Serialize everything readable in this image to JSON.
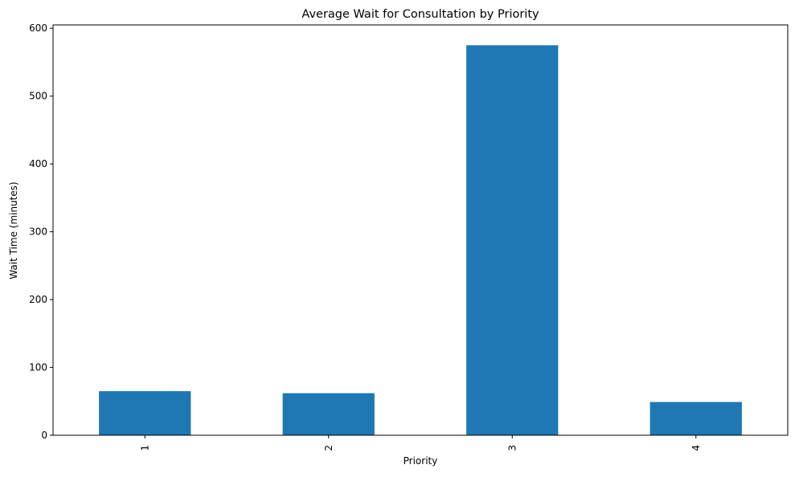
{
  "chart_data": {
    "type": "bar",
    "title": "Average Wait for Consultation by Priority",
    "xlabel": "Priority",
    "ylabel": "Wait Time (minutes)",
    "categories": [
      "1",
      "2",
      "3",
      "4"
    ],
    "values": [
      65,
      62,
      575,
      49
    ],
    "ylim": [
      0,
      605
    ],
    "yticks": [
      0,
      100,
      200,
      300,
      400,
      500,
      600
    ],
    "bar_color": "#1f77b4",
    "grid": false,
    "legend": "none"
  }
}
